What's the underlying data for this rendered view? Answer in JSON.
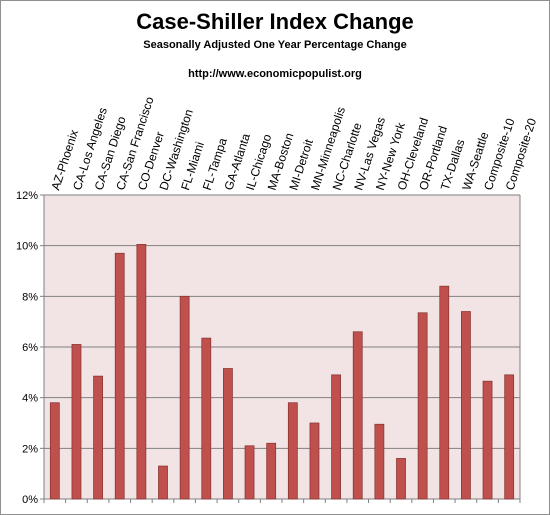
{
  "chart_data": {
    "type": "bar",
    "title": "Case-Shiller Index Change",
    "subtitle": "Seasonally Adjusted One Year Percentage Change",
    "source": "http://www.economicpopulist.org",
    "categories": [
      "AZ-Phoenix",
      "CA-Los Angeles",
      "CA-San Diego",
      "CA-San Francisco",
      "CO-Denver",
      "DC-Washington",
      "FL-Miami",
      "FL-Tampa",
      "GA-Atlanta",
      "IL-Chicago",
      "MA-Boston",
      "MI-Detroit",
      "MN-Minneapolis",
      "NC-Charlotte",
      "NV-Las Vegas",
      "NY-New York",
      "OH-Cleveland",
      "OR-Portland",
      "TX-Dallas",
      "WA-Seattle",
      "Composite-10",
      "Composite-20"
    ],
    "values": [
      3.8,
      6.1,
      4.85,
      9.7,
      10.05,
      1.3,
      8.0,
      6.35,
      5.15,
      2.1,
      2.2,
      3.8,
      3.0,
      4.9,
      6.6,
      2.95,
      1.6,
      7.35,
      8.4,
      7.4,
      4.65,
      4.9
    ],
    "ylim": [
      0,
      12
    ],
    "yticks": [
      "0%",
      "2%",
      "4%",
      "6%",
      "8%",
      "10%",
      "12%"
    ],
    "grid": true,
    "legend": "none",
    "colors": {
      "bar": "#c0504d",
      "bar_edge": "#8c3836",
      "plot_bg": "#f2e4e4",
      "grid": "#7f7f7f",
      "axis": "#808080"
    }
  }
}
